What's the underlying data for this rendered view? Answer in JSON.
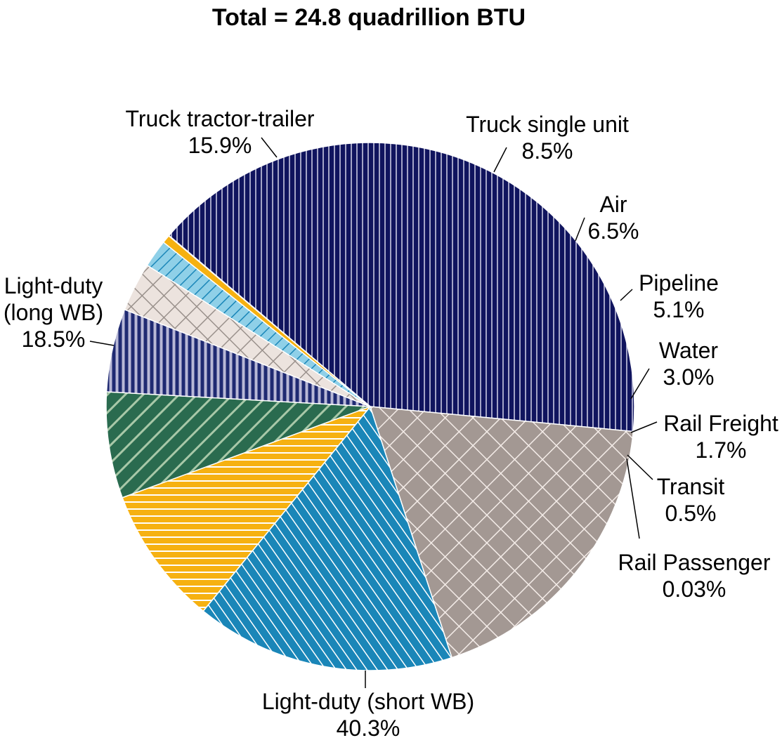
{
  "chart_data": {
    "type": "pie",
    "title": "Total = 24.8 quadrillion BTU",
    "start_angle_deg": 162,
    "direction": "clockwise",
    "slices": [
      {
        "name": "Truck tractor-trailer",
        "value_label": "15.9%",
        "value": 15.9,
        "color": "#1a86b8",
        "line_color": "#ffffff",
        "pattern": "diag-left"
      },
      {
        "name": "Truck single unit",
        "value_label": "8.5%",
        "value": 8.5,
        "color": "#f6b111",
        "line_color": "#ffffff",
        "pattern": "horizontal"
      },
      {
        "name": "Air",
        "value_label": "6.5%",
        "value": 6.5,
        "color": "#2a6b4f",
        "line_color": "#a8c8a8",
        "pattern": "diag-wide"
      },
      {
        "name": "Pipeline",
        "value_label": "5.1%",
        "value": 5.1,
        "color": "#1f2a72",
        "line_color": "#b8b8d6",
        "pattern": "vertical"
      },
      {
        "name": "Water",
        "value_label": "3.0%",
        "value": 3.0,
        "color": "#ece3de",
        "line_color": "#9a918c",
        "pattern": "cross"
      },
      {
        "name": "Rail Freight",
        "value_label": "1.7%",
        "value": 1.7,
        "color": "#8fd0e8",
        "line_color": "#1a86b8",
        "pattern": "diag-right"
      },
      {
        "name": "Transit",
        "value_label": "0.5%",
        "value": 0.5,
        "color": "#f6b111",
        "line_color": "#ffffff",
        "pattern": "solid"
      },
      {
        "name": "Rail Passenger",
        "value_label": "0.03%",
        "value": 0.03,
        "color": "#f8e2a8",
        "line_color": "#ffffff",
        "pattern": "solid"
      },
      {
        "name": "Light-duty (short WB)",
        "value_label": "40.3%",
        "value": 40.3,
        "color": "#10145e",
        "line_color": "#c8c8e0",
        "pattern": "vertical-fine"
      },
      {
        "name": "Light-duty (long WB)",
        "value_label": "18.5%",
        "value": 18.5,
        "color": "#a39893",
        "line_color": "#f4ece8",
        "pattern": "cross"
      }
    ],
    "labels": [
      {
        "lines": [
          "Truck tractor-trailer",
          "15.9%"
        ]
      },
      {
        "lines": [
          "Truck single unit",
          "8.5%"
        ]
      },
      {
        "lines": [
          "Air",
          "6.5%"
        ]
      },
      {
        "lines": [
          "Pipeline",
          "5.1%"
        ]
      },
      {
        "lines": [
          "Water",
          "3.0%"
        ]
      },
      {
        "lines": [
          "Rail Freight",
          "1.7%"
        ]
      },
      {
        "lines": [
          "Transit",
          "0.5%"
        ]
      },
      {
        "lines": [
          "Rail Passenger",
          "0.03%"
        ]
      },
      {
        "lines": [
          "Light-duty (short WB)",
          "40.3%"
        ]
      },
      {
        "lines": [
          "Light-duty",
          "(long WB)",
          "18.5%"
        ]
      }
    ]
  }
}
